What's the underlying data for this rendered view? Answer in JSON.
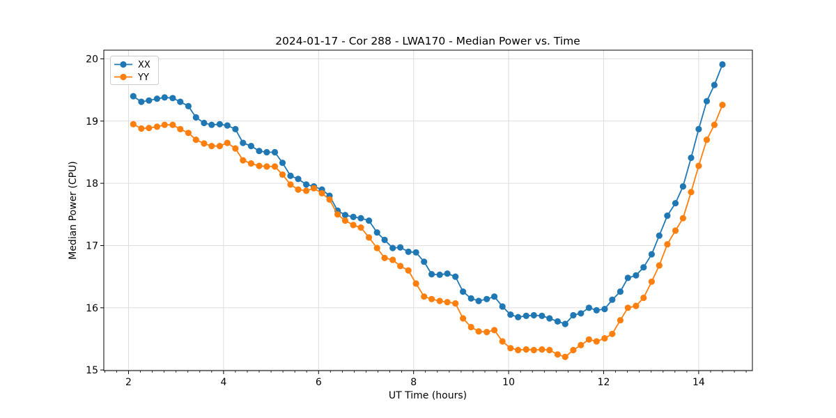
{
  "chart_data": {
    "type": "line",
    "title": "2024-01-17 - Cor 288 - LWA170 - Median Power vs. Time",
    "xlabel": "UT Time (hours)",
    "ylabel": "Median Power (CPU)",
    "xlim": [
      1.48,
      15.13
    ],
    "ylim": [
      14.99,
      20.14
    ],
    "xticks": [
      2,
      4,
      6,
      8,
      10,
      12,
      14
    ],
    "yticks": [
      15,
      16,
      17,
      18,
      19,
      20
    ],
    "minor_xtick_step": 0.25,
    "grid": true,
    "grid_color": "#dddddd",
    "legend_position": "upper left",
    "marker": "circle",
    "x": [
      2.1,
      2.27,
      2.43,
      2.6,
      2.76,
      2.93,
      3.09,
      3.26,
      3.42,
      3.59,
      3.75,
      3.92,
      4.08,
      4.25,
      4.41,
      4.58,
      4.75,
      4.91,
      5.08,
      5.24,
      5.41,
      5.57,
      5.74,
      5.9,
      6.07,
      6.23,
      6.4,
      6.56,
      6.73,
      6.89,
      7.06,
      7.23,
      7.39,
      7.56,
      7.72,
      7.89,
      8.05,
      8.22,
      8.38,
      8.55,
      8.71,
      8.88,
      9.04,
      9.21,
      9.37,
      9.54,
      9.7,
      9.87,
      10.04,
      10.2,
      10.37,
      10.53,
      10.7,
      10.86,
      11.03,
      11.19,
      11.36,
      11.52,
      11.69,
      11.85,
      12.02,
      12.18,
      12.35,
      12.51,
      12.68,
      12.84,
      13.01,
      13.17,
      13.34,
      13.51,
      13.67,
      13.84,
      14.0,
      14.17,
      14.33,
      14.5
    ],
    "series": [
      {
        "name": "XX",
        "color": "#1f77b4",
        "values": [
          19.4,
          19.31,
          19.33,
          19.36,
          19.38,
          19.37,
          19.31,
          19.24,
          19.06,
          18.97,
          18.94,
          18.95,
          18.93,
          18.87,
          18.65,
          18.6,
          18.52,
          18.5,
          18.5,
          18.33,
          18.12,
          18.07,
          17.98,
          17.95,
          17.9,
          17.8,
          17.56,
          17.49,
          17.46,
          17.44,
          17.4,
          17.21,
          17.09,
          16.96,
          16.97,
          16.9,
          16.89,
          16.74,
          16.54,
          16.53,
          16.55,
          16.5,
          16.26,
          16.15,
          16.11,
          16.14,
          16.18,
          16.02,
          15.89,
          15.85,
          15.87,
          15.88,
          15.87,
          15.83,
          15.78,
          15.74,
          15.88,
          15.91,
          16.0,
          15.96,
          15.98,
          16.13,
          16.26,
          16.48,
          16.52,
          16.65,
          16.86,
          17.16,
          17.48,
          17.68,
          17.95,
          18.41,
          18.87,
          19.32,
          19.58,
          19.91
        ]
      },
      {
        "name": "YY",
        "color": "#ff7f0e",
        "values": [
          18.95,
          18.88,
          18.89,
          18.91,
          18.94,
          18.94,
          18.87,
          18.81,
          18.7,
          18.64,
          18.6,
          18.6,
          18.65,
          18.56,
          18.37,
          18.32,
          18.28,
          18.27,
          18.27,
          18.14,
          17.98,
          17.9,
          17.88,
          17.92,
          17.84,
          17.74,
          17.5,
          17.4,
          17.33,
          17.29,
          17.13,
          16.96,
          16.8,
          16.77,
          16.67,
          16.6,
          16.39,
          16.18,
          16.14,
          16.11,
          16.09,
          16.07,
          15.83,
          15.69,
          15.62,
          15.61,
          15.64,
          15.46,
          15.35,
          15.32,
          15.33,
          15.32,
          15.33,
          15.32,
          15.25,
          15.21,
          15.32,
          15.4,
          15.49,
          15.46,
          15.51,
          15.58,
          15.8,
          16.0,
          16.03,
          16.16,
          16.42,
          16.68,
          17.02,
          17.24,
          17.44,
          17.86,
          18.28,
          18.7,
          18.94,
          19.26
        ]
      }
    ]
  }
}
